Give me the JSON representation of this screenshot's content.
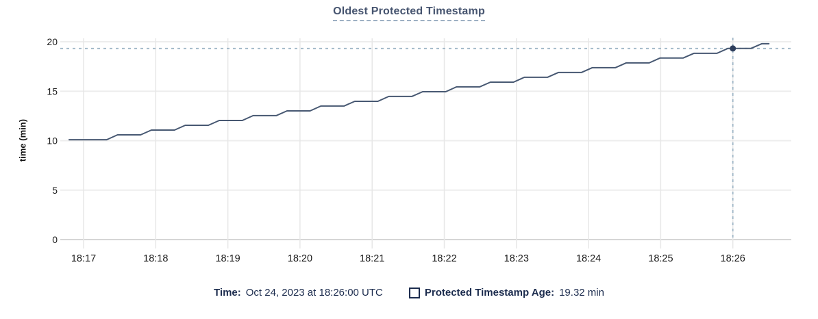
{
  "chart_data": {
    "type": "line",
    "title": "Oldest Protected Timestamp",
    "ylabel": "time (min)",
    "ylim": [
      0,
      20
    ],
    "y_ticks": [
      0,
      5,
      10,
      15,
      20
    ],
    "x_ticks": [
      "18:17",
      "18:18",
      "18:19",
      "18:20",
      "18:21",
      "18:22",
      "18:23",
      "18:24",
      "18:25",
      "18:26"
    ],
    "x_unit": "minutes after 18:17",
    "grid": true,
    "legend_position": "bottom",
    "series": [
      {
        "name": "Protected Timestamp Age",
        "unit": "min",
        "color": "#475872",
        "points": [
          [
            -0.2,
            10.1
          ],
          [
            0.32,
            10.1
          ],
          [
            0.47,
            10.59
          ],
          [
            0.79,
            10.59
          ],
          [
            0.94,
            11.07
          ],
          [
            1.26,
            11.07
          ],
          [
            1.41,
            11.56
          ],
          [
            1.73,
            11.56
          ],
          [
            1.88,
            12.04
          ],
          [
            2.2,
            12.04
          ],
          [
            2.35,
            12.53
          ],
          [
            2.67,
            12.53
          ],
          [
            2.82,
            13.01
          ],
          [
            3.14,
            13.01
          ],
          [
            3.29,
            13.5
          ],
          [
            3.61,
            13.5
          ],
          [
            3.76,
            13.98
          ],
          [
            4.08,
            13.98
          ],
          [
            4.23,
            14.47
          ],
          [
            4.55,
            14.47
          ],
          [
            4.7,
            14.95
          ],
          [
            5.02,
            14.95
          ],
          [
            5.17,
            15.44
          ],
          [
            5.49,
            15.44
          ],
          [
            5.64,
            15.92
          ],
          [
            5.96,
            15.92
          ],
          [
            6.11,
            16.41
          ],
          [
            6.43,
            16.41
          ],
          [
            6.58,
            16.89
          ],
          [
            6.9,
            16.89
          ],
          [
            7.05,
            17.38
          ],
          [
            7.37,
            17.38
          ],
          [
            7.52,
            17.86
          ],
          [
            7.84,
            17.86
          ],
          [
            7.99,
            18.35
          ],
          [
            8.31,
            18.35
          ],
          [
            8.46,
            18.83
          ],
          [
            8.78,
            18.83
          ],
          [
            8.93,
            19.32
          ],
          [
            9.25,
            19.32
          ],
          [
            9.4,
            19.8
          ],
          [
            9.5,
            19.8
          ]
        ]
      }
    ],
    "crosshair": {
      "t": 9,
      "x_label": "18:26",
      "value": 19.32
    },
    "colors": {
      "line": "#475872",
      "dot": "#2e3e5c",
      "crosshair": "#9fb6c6",
      "grid": "#ededed",
      "axis_line": "#d6d6d6",
      "title": "#46546f",
      "legend_text": "#1c2c4e",
      "tick_text": "#1b1b1b"
    }
  },
  "legend": {
    "time_label": "Time:",
    "time_value": "Oct 24, 2023 at 18:26:00 UTC",
    "series_label": "Protected Timestamp Age:",
    "series_value": "19.32 min"
  }
}
